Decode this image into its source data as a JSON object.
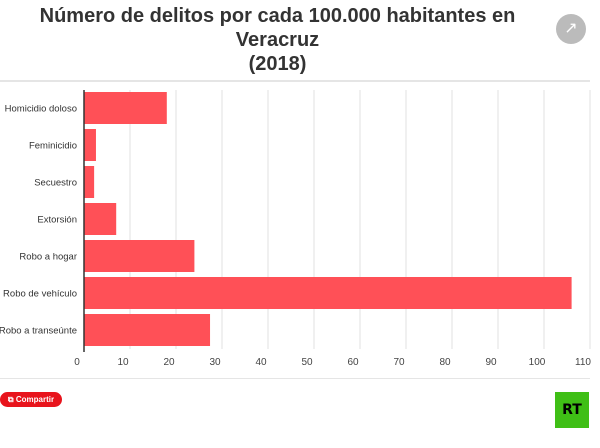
{
  "chart_data": {
    "type": "bar",
    "orientation": "horizontal",
    "title": "Número de delitos por cada 100.000 habitantes en Veracruz\n(2018)",
    "categories": [
      "Homicidio doloso",
      "Feminicidio",
      "Secuestro",
      "Extorsión",
      "Robo a hogar",
      "Robo de vehículo",
      "Robo a transeúnte"
    ],
    "values": [
      18,
      2.6,
      2.2,
      7,
      24,
      106,
      27.4
    ],
    "xticks": [
      0,
      10,
      20,
      30,
      40,
      50,
      60,
      70,
      80,
      90,
      100,
      110
    ],
    "xlim": [
      0,
      110
    ],
    "grid": true,
    "color": "#ff5057"
  },
  "ui": {
    "share_label": "Compartir",
    "logo": "RT"
  }
}
